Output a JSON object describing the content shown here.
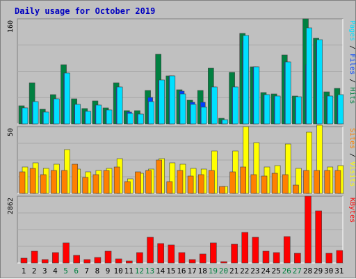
{
  "title": "Daily usage for October 2019",
  "colors": {
    "title": "#0000c0",
    "frame_bg": "#c0c0c0",
    "hits": "#008040",
    "files": "#0040ff",
    "pages": "#00e0ff",
    "visits": "#ffff00",
    "sites": "#ff8000",
    "kbytes": "#ff0000",
    "weekend_label": "#008040",
    "weekday_label": "#000000"
  },
  "legends": {
    "top": [
      {
        "key": "hits",
        "text": "Hits"
      },
      {
        "key": "files",
        "text": "Files"
      },
      {
        "key": "pages",
        "text": "Pages"
      }
    ],
    "mid": [
      {
        "key": "visits",
        "text": "Visits"
      },
      {
        "key": "sites",
        "text": "Sites"
      }
    ],
    "bot": [
      {
        "key": "kbytes",
        "text": "KBytes"
      }
    ],
    "separator": " / "
  },
  "chart_data": [
    {
      "type": "bar",
      "panel": "hits-files-pages",
      "ymax_label": "160",
      "ylim": [
        0,
        160
      ],
      "categories": [
        "1",
        "2",
        "3",
        "4",
        "5",
        "6",
        "7",
        "8",
        "9",
        "10",
        "11",
        "12",
        "13",
        "14",
        "15",
        "16",
        "17",
        "18",
        "19",
        "20",
        "21",
        "22",
        "23",
        "24",
        "25",
        "26",
        "27",
        "28",
        "29",
        "30",
        "31"
      ],
      "series": [
        {
          "name": "Hits",
          "color": "#008040",
          "values": [
            28,
            62,
            22,
            44,
            90,
            38,
            23,
            35,
            24,
            62,
            20,
            20,
            51,
            106,
            73,
            52,
            36,
            51,
            85,
            9,
            78,
            138,
            87,
            48,
            46,
            105,
            42,
            160,
            130,
            49,
            54
          ]
        },
        {
          "name": "Files",
          "color": "#0040ff",
          "values": [
            24,
            34,
            18,
            38,
            77,
            30,
            19,
            29,
            21,
            56,
            18,
            15,
            40,
            67,
            73,
            50,
            33,
            33,
            56,
            5,
            56,
            126,
            87,
            45,
            42,
            94,
            37,
            90,
            124,
            42,
            42
          ]
        },
        {
          "name": "Pages",
          "color": "#00e0ff",
          "values": [
            24,
            34,
            18,
            38,
            77,
            30,
            19,
            29,
            21,
            56,
            16,
            15,
            34,
            67,
            73,
            46,
            30,
            25,
            56,
            6,
            56,
            135,
            87,
            45,
            42,
            94,
            41,
            146,
            128,
            42,
            44
          ]
        }
      ]
    },
    {
      "type": "bar",
      "panel": "visits-sites",
      "ymax_label": "50",
      "ylim": [
        0,
        50
      ],
      "categories": [
        "1",
        "2",
        "3",
        "4",
        "5",
        "6",
        "7",
        "8",
        "9",
        "10",
        "11",
        "12",
        "13",
        "14",
        "15",
        "16",
        "17",
        "18",
        "19",
        "20",
        "21",
        "22",
        "23",
        "24",
        "25",
        "26",
        "27",
        "28",
        "29",
        "30",
        "31"
      ],
      "series": [
        {
          "name": "Visits",
          "color": "#ffff00",
          "values": [
            20,
            23,
            19,
            22,
            33,
            18,
            16,
            17,
            19,
            26,
            11,
            15,
            18,
            26,
            23,
            22,
            19,
            18,
            32,
            5,
            32,
            50,
            38,
            20,
            21,
            37,
            19,
            46,
            51,
            20,
            21
          ]
        },
        {
          "name": "Sites",
          "color": "#ff8000",
          "values": [
            16,
            19,
            14,
            17,
            17,
            22,
            12,
            14,
            17,
            20,
            9,
            16,
            17,
            25,
            9,
            17,
            13,
            14,
            17,
            5,
            16,
            20,
            14,
            13,
            15,
            14,
            6,
            17,
            17,
            17,
            17
          ]
        }
      ]
    },
    {
      "type": "bar",
      "panel": "kbytes",
      "ymax_label": "2862",
      "ylim": [
        0,
        2862
      ],
      "categories": [
        "1",
        "2",
        "3",
        "4",
        "5",
        "6",
        "7",
        "8",
        "9",
        "10",
        "11",
        "12",
        "13",
        "14",
        "15",
        "16",
        "17",
        "18",
        "19",
        "20",
        "21",
        "22",
        "23",
        "24",
        "25",
        "26",
        "27",
        "28",
        "29",
        "30",
        "31"
      ],
      "series": [
        {
          "name": "KBytes",
          "color": "#ff0000",
          "values": [
            220,
            500,
            140,
            450,
            860,
            330,
            160,
            230,
            510,
            180,
            90,
            460,
            1090,
            830,
            790,
            440,
            160,
            390,
            860,
            70,
            800,
            1320,
            1100,
            510,
            460,
            1130,
            430,
            2862,
            2240,
            430,
            540
          ]
        }
      ]
    }
  ],
  "x_labels": [
    {
      "text": "1",
      "weekend": false
    },
    {
      "text": "2",
      "weekend": false
    },
    {
      "text": "3",
      "weekend": false
    },
    {
      "text": "4",
      "weekend": false
    },
    {
      "text": "5",
      "weekend": true
    },
    {
      "text": "6",
      "weekend": true
    },
    {
      "text": "7",
      "weekend": false
    },
    {
      "text": "8",
      "weekend": false
    },
    {
      "text": "9",
      "weekend": false
    },
    {
      "text": "10",
      "weekend": false
    },
    {
      "text": "11",
      "weekend": false
    },
    {
      "text": "12",
      "weekend": true
    },
    {
      "text": "13",
      "weekend": true
    },
    {
      "text": "14",
      "weekend": false
    },
    {
      "text": "15",
      "weekend": false
    },
    {
      "text": "16",
      "weekend": false
    },
    {
      "text": "17",
      "weekend": false
    },
    {
      "text": "18",
      "weekend": false
    },
    {
      "text": "19",
      "weekend": true
    },
    {
      "text": "20",
      "weekend": true
    },
    {
      "text": "21",
      "weekend": false
    },
    {
      "text": "22",
      "weekend": false
    },
    {
      "text": "23",
      "weekend": false
    },
    {
      "text": "24",
      "weekend": false
    },
    {
      "text": "25",
      "weekend": false
    },
    {
      "text": "26",
      "weekend": true
    },
    {
      "text": "27",
      "weekend": true
    },
    {
      "text": "28",
      "weekend": false
    },
    {
      "text": "29",
      "weekend": false
    },
    {
      "text": "30",
      "weekend": false
    },
    {
      "text": "31",
      "weekend": false
    }
  ]
}
